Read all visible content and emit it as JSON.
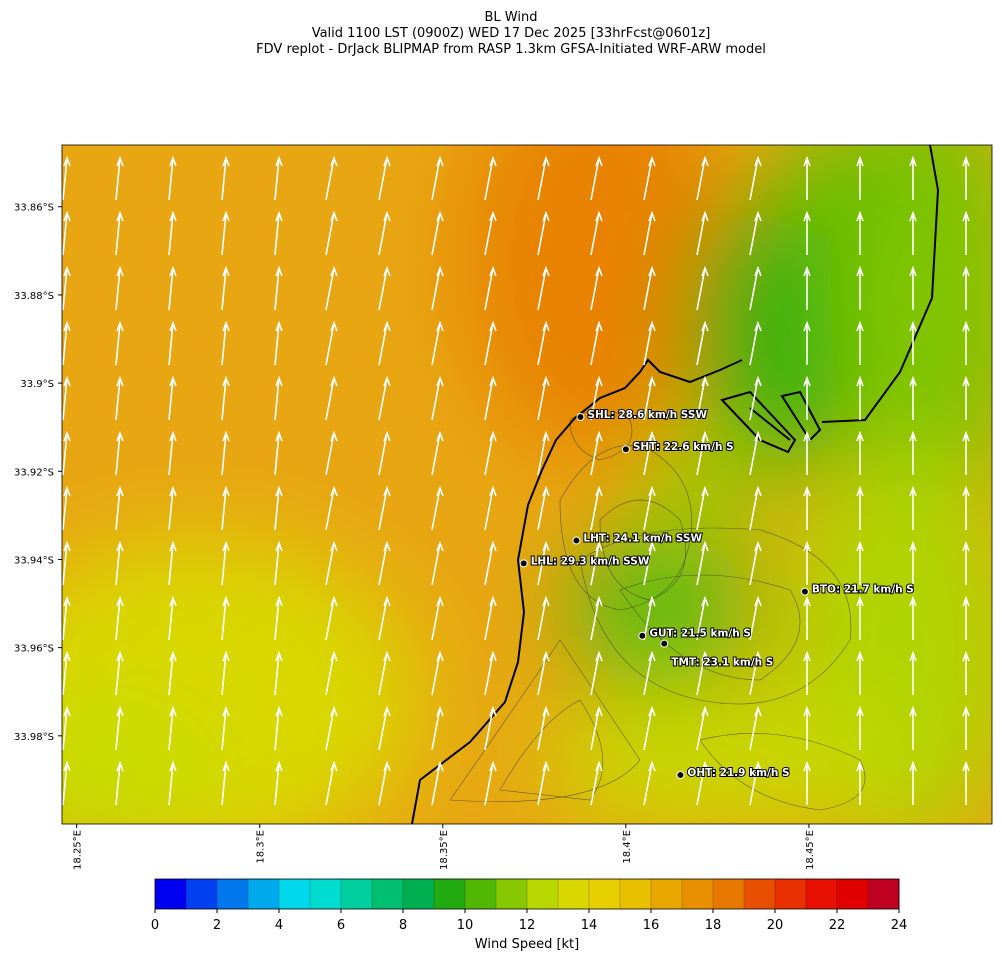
{
  "title": [
    "BL Wind",
    "Valid 1100 LST (0900Z) WED 17 Dec 2025 [33hrFcst@0601z]",
    "FDV replot - DrJack BLIPMAP from RASP 1.3km GFSA-Initiated WRF-ARW model"
  ],
  "map": {
    "latlim": [
      33.846,
      34.0
    ],
    "lonlim": [
      18.246,
      18.5
    ],
    "lat_ticks": [
      {
        "value": 33.86,
        "label": "33.86°S"
      },
      {
        "value": 33.88,
        "label": "33.88°S"
      },
      {
        "value": 33.9,
        "label": "33.9°S"
      },
      {
        "value": 33.92,
        "label": "33.92°S"
      },
      {
        "value": 33.94,
        "label": "33.94°S"
      },
      {
        "value": 33.96,
        "label": "33.96°S"
      },
      {
        "value": 33.98,
        "label": "33.98°S"
      }
    ],
    "lon_ticks": [
      {
        "value": 18.25,
        "label": "18.25°E"
      },
      {
        "value": 18.3,
        "label": "18.3°E"
      },
      {
        "value": 18.35,
        "label": "18.35°E"
      },
      {
        "value": 18.4,
        "label": "18.4°E"
      },
      {
        "value": 18.45,
        "label": "18.45°E"
      }
    ],
    "stations": [
      {
        "label": "SHL: 28.6 km/h SSW",
        "lat": 33.9077,
        "lon": 18.3876
      },
      {
        "label": "SHT: 22.6 km/h S",
        "lat": 33.915,
        "lon": 18.4
      },
      {
        "label": "LHT: 24.1 km/h SSW",
        "lat": 33.9357,
        "lon": 18.3865
      },
      {
        "label": "LHL: 29.3 km/h SSW",
        "lat": 33.9409,
        "lon": 18.3721
      },
      {
        "label": "BTO: 21.7 km/h S",
        "lat": 33.9473,
        "lon": 18.4489
      },
      {
        "label": "GUT: 21.5 km/h S",
        "lat": 33.9573,
        "lon": 18.4045
      },
      {
        "label": "TMT: 23.1 km/h S",
        "lat": 33.9591,
        "lon": 18.4105
      },
      {
        "label": "OHT: 21.9 km/h S",
        "lat": 33.9889,
        "lon": 18.4149
      }
    ]
  },
  "colorbar": {
    "label": "Wind Speed [kt]",
    "lim": [
      0,
      24
    ],
    "ticks": [
      0,
      2,
      4,
      6,
      8,
      10,
      12,
      14,
      16,
      18,
      20,
      22,
      24
    ],
    "colors": [
      "#0000f0",
      "#0040f0",
      "#0078ec",
      "#00a8ec",
      "#00d8ec",
      "#00dcd0",
      "#00d0a0",
      "#00c070",
      "#00b050",
      "#22aa11",
      "#50b800",
      "#88c800",
      "#b8d800",
      "#d8d800",
      "#e8d000",
      "#e8c000",
      "#e8a800",
      "#e89000",
      "#e87800",
      "#e85000",
      "#e83000",
      "#e81000",
      "#e00000",
      "#c00020"
    ]
  }
}
